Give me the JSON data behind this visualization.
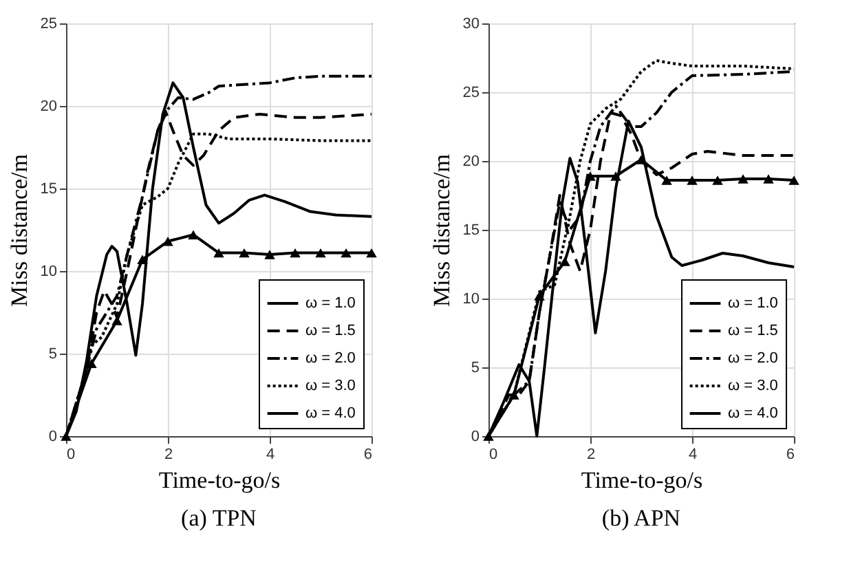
{
  "chart_data": [
    {
      "type": "line",
      "title": "(a) TPN",
      "xlabel": "Time-to-go/s",
      "ylabel": "Miss distance/m",
      "xlim": [
        0,
        6
      ],
      "ylim": [
        0,
        25
      ],
      "xticks": [
        0,
        2,
        4,
        6
      ],
      "yticks": [
        0,
        5,
        10,
        15,
        20,
        25
      ],
      "grid": true,
      "legend": "bottom right",
      "series": [
        {
          "name": "ω = 1.0",
          "color": "#000000",
          "line_style": "solid",
          "marker": "none",
          "x": [
            0,
            0.2,
            0.4,
            0.6,
            0.8,
            0.9,
            1.0,
            1.2,
            1.37,
            1.5,
            1.7,
            1.9,
            2.1,
            2.3,
            2.5,
            2.75,
            3.0,
            3.3,
            3.6,
            3.9,
            4.3,
            4.8,
            5.3,
            6
          ],
          "values": [
            0,
            1.5,
            4.5,
            8.5,
            11,
            11.5,
            11.2,
            8,
            4.9,
            8,
            15,
            19.5,
            21.4,
            20.5,
            17.5,
            14,
            12.9,
            13.5,
            14.3,
            14.6,
            14.2,
            13.6,
            13.4,
            13.3
          ]
        },
        {
          "name": "ω = 1.5",
          "color": "#000000",
          "line_style": "dashed",
          "marker": "none",
          "x": [
            0,
            0.4,
            0.6,
            0.75,
            0.9,
            1.0,
            1.2,
            1.4,
            1.6,
            1.8,
            1.95,
            2.1,
            2.3,
            2.5,
            2.7,
            3.0,
            3.3,
            3.8,
            4.5,
            5.0,
            6
          ],
          "values": [
            0,
            4,
            7.5,
            8.8,
            8,
            7.2,
            10,
            13,
            16,
            18.5,
            19.7,
            18.5,
            17,
            16.4,
            17,
            18.5,
            19.3,
            19.5,
            19.3,
            19.3,
            19.5
          ]
        },
        {
          "name": "ω = 2.0",
          "color": "#000000",
          "line_style": "dashdot",
          "marker": "none",
          "x": [
            0,
            0.4,
            0.6,
            0.8,
            1.0,
            1.2,
            1.5,
            1.8,
            2.0,
            2.2,
            2.5,
            2.8,
            3.0,
            3.5,
            4,
            4.5,
            5,
            6
          ],
          "values": [
            0,
            4,
            6.5,
            7.5,
            8.5,
            11,
            14.5,
            18.5,
            19.8,
            20.5,
            20.4,
            20.8,
            21.2,
            21.3,
            21.4,
            21.7,
            21.8,
            21.8
          ]
        },
        {
          "name": "ω = 3.0",
          "color": "#000000",
          "line_style": "dotted",
          "marker": "none",
          "x": [
            0,
            0.3,
            0.5,
            0.7,
            1.0,
            1.2,
            1.5,
            1.8,
            2.0,
            2.2,
            2.5,
            2.8,
            3.2,
            4,
            5,
            6
          ],
          "values": [
            0,
            3,
            5.5,
            6,
            8,
            11,
            14,
            14.5,
            15,
            16.5,
            18.3,
            18.3,
            18,
            18,
            17.9,
            17.9
          ]
        },
        {
          "name": "ω = 4.0",
          "color": "#000000",
          "line_style": "solid",
          "marker": "triangle",
          "x": [
            0,
            0.5,
            1.0,
            1.5,
            2.0,
            2.5,
            3.0,
            3.5,
            4,
            4.5,
            5,
            5.5,
            6
          ],
          "values": [
            0,
            4.4,
            7.0,
            10.7,
            11.8,
            12.2,
            11.1,
            11.1,
            11.0,
            11.1,
            11.1,
            11.1,
            11.1
          ]
        }
      ]
    },
    {
      "type": "line",
      "title": "(b) APN",
      "xlabel": "Time-to-go/s",
      "ylabel": "Miss distance/m",
      "xlim": [
        0,
        6
      ],
      "ylim": [
        0,
        30
      ],
      "xticks": [
        0,
        2,
        4,
        6
      ],
      "yticks": [
        0,
        5,
        10,
        15,
        20,
        25,
        30
      ],
      "grid": true,
      "legend": "bottom right",
      "series": [
        {
          "name": "ω = 1.0",
          "color": "#000000",
          "line_style": "solid",
          "marker": "none",
          "x": [
            0,
            0.3,
            0.6,
            0.8,
            0.95,
            1.1,
            1.3,
            1.45,
            1.6,
            1.75,
            1.9,
            2.1,
            2.3,
            2.5,
            2.75,
            3.0,
            3.3,
            3.6,
            3.8,
            4.2,
            4.6,
            5.0,
            5.5,
            6
          ],
          "values": [
            0,
            2.5,
            5.2,
            4,
            0,
            5,
            12,
            17,
            20.2,
            18.5,
            14,
            7.5,
            12,
            18,
            22.9,
            21,
            16,
            13,
            12.4,
            12.8,
            13.3,
            13.1,
            12.6,
            12.3
          ]
        },
        {
          "name": "ω = 1.5",
          "color": "#000000",
          "line_style": "dashed",
          "marker": "none",
          "x": [
            0,
            0.4,
            0.6,
            0.8,
            1.0,
            1.2,
            1.4,
            1.6,
            1.8,
            2.0,
            2.2,
            2.4,
            2.6,
            2.8,
            3.0,
            3.3,
            3.6,
            4.0,
            4.3,
            5,
            6
          ],
          "values": [
            0,
            3,
            3,
            4,
            9,
            13,
            17.5,
            14,
            12,
            15,
            20,
            23.5,
            23.3,
            22,
            20,
            19,
            19.5,
            20.5,
            20.7,
            20.4,
            20.4
          ]
        },
        {
          "name": "ω = 2.0",
          "color": "#000000",
          "line_style": "dashdot",
          "marker": "none",
          "x": [
            0,
            0.5,
            0.8,
            1.0,
            1.2,
            1.4,
            1.6,
            1.8,
            2.0,
            2.2,
            2.5,
            2.8,
            3.0,
            3.3,
            3.6,
            4.0,
            5,
            6
          ],
          "values": [
            0,
            3,
            4,
            9,
            13,
            17,
            15,
            16,
            20,
            22.5,
            24,
            22.5,
            22.5,
            23.5,
            25,
            26.2,
            26.3,
            26.5
          ]
        },
        {
          "name": "ω = 3.0",
          "color": "#000000",
          "line_style": "dotted",
          "marker": "none",
          "x": [
            0,
            0.5,
            1.0,
            1.3,
            1.6,
            1.8,
            2.0,
            2.3,
            2.6,
            3.0,
            3.3,
            3.6,
            4.0,
            5,
            6
          ],
          "values": [
            0,
            3,
            10.5,
            11,
            16,
            20,
            22.7,
            23.8,
            24.5,
            26.5,
            27.3,
            27.1,
            26.9,
            26.9,
            26.7
          ]
        },
        {
          "name": "ω = 4.0",
          "color": "#000000",
          "line_style": "solid",
          "marker": "triangle",
          "x": [
            0,
            0.5,
            1.0,
            1.5,
            2.0,
            2.5,
            3.0,
            3.5,
            4,
            4.5,
            5,
            5.5,
            6
          ],
          "values": [
            0,
            3,
            10.2,
            12.7,
            18.9,
            18.9,
            20.1,
            18.6,
            18.6,
            18.6,
            18.7,
            18.7,
            18.6
          ]
        }
      ]
    }
  ]
}
